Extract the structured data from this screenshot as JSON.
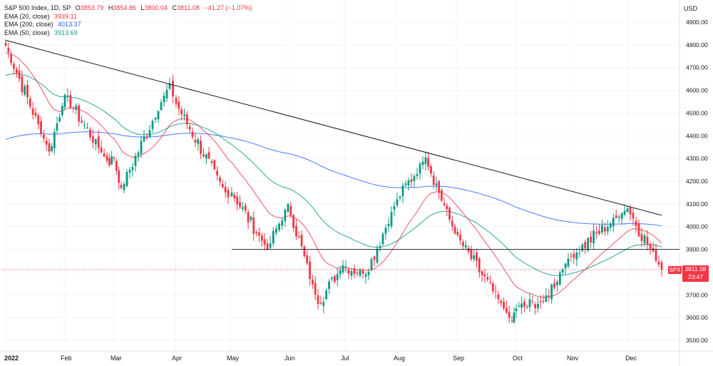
{
  "header": {
    "symbol": "S&P 500 Index, 1D, SP",
    "open_label": "O",
    "open": "3853.79",
    "high_label": "H",
    "high": "3854.86",
    "low_label": "L",
    "low": "3800.04",
    "close_label": "C",
    "close": "3811.08",
    "change": "−41.27 (−1.07%)"
  },
  "indicators": [
    {
      "label": "EMA (20, close)",
      "value": "3939.11",
      "color": "#f23645"
    },
    {
      "label": "EMA (200, close)",
      "value": "4013.37",
      "color": "#2962ff"
    },
    {
      "label": "EMA (50, close)",
      "value": "3913.69",
      "color": "#089981"
    }
  ],
  "currency": "USD",
  "price_tag": {
    "symbol": "SPX",
    "price": "3811.08",
    "countdown": "23:47"
  },
  "colors": {
    "up": "#089981",
    "down": "#f23645",
    "ema20": "#f23645",
    "ema200": "#2962ff",
    "ema50": "#089981",
    "trendline": "#131722"
  },
  "chart_data": {
    "type": "candlestick",
    "title": "S&P 500 Index, 1D, SP",
    "y_ticks": [
      3500,
      3600,
      3700,
      3800,
      3900,
      4000,
      4100,
      4200,
      4300,
      4400,
      4500,
      4600,
      4700,
      4800,
      4900
    ],
    "ylim": [
      3470,
      4980
    ],
    "x_ticks": [
      "2022",
      "Feb",
      "Mar",
      "Apr",
      "May",
      "Jun",
      "Jul",
      "Aug",
      "Sep",
      "Oct",
      "Nov",
      "Dec"
    ],
    "grid": true,
    "monthly_close_anchors": [
      {
        "x": "2022",
        "close": 4796
      },
      {
        "x": "Jan-27",
        "close": 4330
      },
      {
        "x": "Feb",
        "close": 4580
      },
      {
        "x": "Feb-24",
        "close": 4290
      },
      {
        "x": "Mar",
        "close": 4300
      },
      {
        "x": "Mar-08",
        "close": 4170
      },
      {
        "x": "Mar-29",
        "close": 4630
      },
      {
        "x": "Apr",
        "close": 4540
      },
      {
        "x": "Apr-29",
        "close": 4130
      },
      {
        "x": "May",
        "close": 4150
      },
      {
        "x": "May-20",
        "close": 3900
      },
      {
        "x": "Jun",
        "close": 4100
      },
      {
        "x": "Jun-16",
        "close": 3660
      },
      {
        "x": "Jul",
        "close": 3830
      },
      {
        "x": "Jul-14",
        "close": 3790
      },
      {
        "x": "Aug",
        "close": 4120
      },
      {
        "x": "Aug-16",
        "close": 4305
      },
      {
        "x": "Sep",
        "close": 3970
      },
      {
        "x": "Sep-30",
        "close": 3585
      },
      {
        "x": "Oct",
        "close": 3640
      },
      {
        "x": "Oct-13",
        "close": 3670
      },
      {
        "x": "Nov",
        "close": 3860
      },
      {
        "x": "Dec",
        "close": 4080
      },
      {
        "x": "Dec-15",
        "close": 3811
      }
    ],
    "horizontal_lines": [
      3900,
      3811
    ],
    "trendline": {
      "from": {
        "x": "2022",
        "y": 4820
      },
      "to": {
        "x": "Dec-15",
        "y": 4050
      }
    },
    "series": [
      {
        "name": "EMA (20, close)",
        "last": 3939.11
      },
      {
        "name": "EMA (200, close)",
        "last": 4013.37
      },
      {
        "name": "EMA (50, close)",
        "last": 3913.69
      }
    ]
  }
}
